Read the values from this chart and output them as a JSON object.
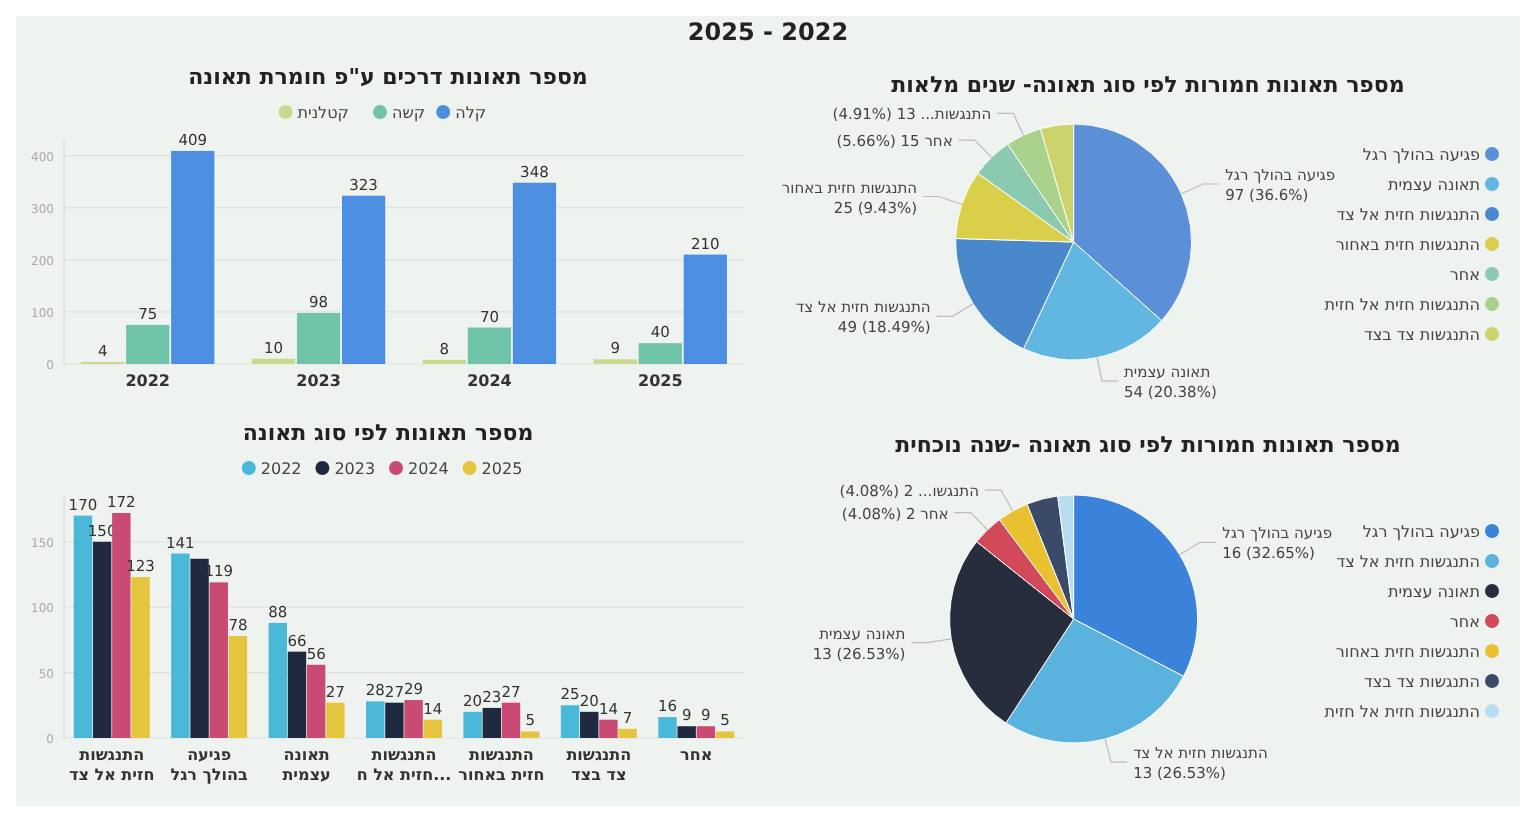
{
  "chart_data": [
    {
      "type": "other",
      "title": "2025 - 2022"
    },
    {
      "type": "bar",
      "title": "מספר תאונות דרכים ע\"פ חומרת תאונה",
      "categories": [
        "2022",
        "2023",
        "2024",
        "2025"
      ],
      "series": [
        {
          "name": "קטלנית",
          "color": "#c9d98e",
          "values": [
            4,
            10,
            8,
            9
          ]
        },
        {
          "name": "קשה",
          "color": "#6fc3a9",
          "values": [
            75,
            98,
            70,
            40
          ]
        },
        {
          "name": "קלה",
          "color": "#4c8ee0",
          "values": [
            409,
            323,
            348,
            210
          ]
        }
      ],
      "ylim": [
        0,
        430
      ],
      "yticks": [
        0,
        100,
        200,
        300,
        400
      ],
      "grid": "y",
      "legend": "top",
      "data_labels": true
    },
    {
      "type": "pie",
      "title": "מספר תאונות חמורות לפי סוג תאונה- שנים מלאות",
      "categories": [
        "פגיעה בהולך רגל",
        "תאונה עצמית",
        "התנגשות חזית אל צד",
        "התנגשות חזית באחור",
        "אחר",
        "התנגשות חזית אל חזית",
        "התנגשות צד בצד"
      ],
      "values": [
        97,
        54,
        49,
        25,
        15,
        13,
        12
      ],
      "colors": [
        "#5b8fd8",
        "#62b6e2",
        "#4a88cc",
        "#d9cf4a",
        "#8ccab0",
        "#a9d38c",
        "#cdd36c"
      ],
      "value_labels": [
        "פגיעה בהולך רגל\n97 (36.6%)",
        "תאונה עצמית\n54 (20.38%)",
        "התנגשות חזית אל צד\n49 (18.49%)",
        "התנגשות חזית באחור\n25 (9.43%)",
        "אחר 15 (5.66%)",
        "התנגשות... 13 (4.91%)",
        null
      ],
      "legend": "right"
    },
    {
      "type": "bar",
      "title": "מספר תאונות לפי סוג תאונה",
      "categories": [
        "התנגשות חזית אל צד",
        "פגיעה בהולך רגל",
        "תאונה עצמית",
        "התנגשות חזית אל ח...",
        "התנגשות חזית באחור",
        "התנגשות צד בצד",
        "אחר"
      ],
      "series": [
        {
          "name": "2022",
          "color": "#4ab8d8",
          "values": [
            170,
            141,
            88,
            28,
            20,
            25,
            16
          ],
          "value_labels": [
            "170",
            "141",
            "88",
            "28",
            "20",
            "25",
            "16"
          ]
        },
        {
          "name": "2023",
          "color": "#1f2a40",
          "values": [
            150,
            137,
            66,
            27,
            23,
            20,
            9
          ],
          "value_labels": [
            "150",
            null,
            "66",
            "27",
            "23",
            "20",
            "9"
          ]
        },
        {
          "name": "2024",
          "color": "#c94a72",
          "values": [
            172,
            119,
            56,
            29,
            27,
            14,
            9
          ],
          "value_labels": [
            "172",
            "119",
            "56",
            "29",
            "27",
            "14",
            "9"
          ]
        },
        {
          "name": "2025",
          "color": "#e6c53e",
          "values": [
            123,
            78,
            27,
            14,
            5,
            7,
            5
          ],
          "value_labels": [
            "123",
            "78",
            "27",
            "14",
            "5",
            "7",
            "5"
          ]
        }
      ],
      "ylim": [
        0,
        185
      ],
      "yticks": [
        0,
        50,
        100,
        150
      ],
      "grid": "y",
      "legend": "top"
    },
    {
      "type": "pie",
      "title": "מספר תאונות חמורות לפי סוג תאונה -שנה נוכחית",
      "categories": [
        "פגיעה בהולך רגל",
        "התנגשות חזית אל צד",
        "תאונה עצמית",
        "אחר",
        "התנגשות חזית באחור",
        "התנגשות צד בצד",
        "התנגשות חזית אל חזית"
      ],
      "values": [
        16,
        13,
        13,
        2,
        2,
        2,
        1
      ],
      "colors": [
        "#3a82da",
        "#5ab2de",
        "#262d3d",
        "#d24a5a",
        "#e8c030",
        "#3c4a6a",
        "#b8dcf0"
      ],
      "value_labels": [
        "פגיעה בהולך רגל\n16 (32.65%)",
        "התנגשות חזית אל צד\n13 (26.53%)",
        "תאונה עצמית\n13 (26.53%)",
        "אחר 2 (4.08%)",
        "התנגשו... 2 (4.08%)",
        null,
        null
      ],
      "legend": "right"
    }
  ]
}
